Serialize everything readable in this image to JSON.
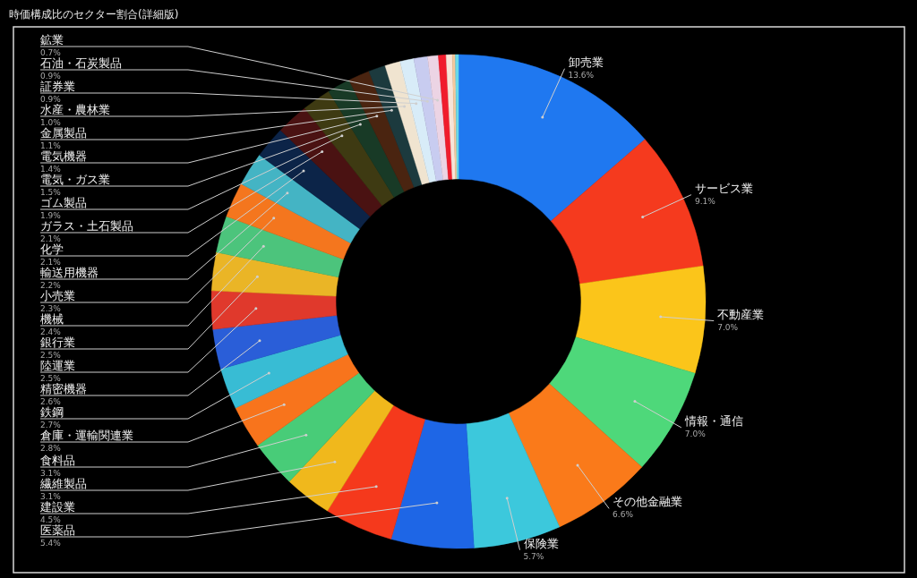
{
  "chart_data": {
    "type": "donut",
    "title": "時価構成比のセクター割合(詳細版)",
    "categories": [
      "卸売業",
      "サービス業",
      "不動産業",
      "情報・通信",
      "その他金融業",
      "保険業",
      "医薬品",
      "建設業",
      "繊維製品",
      "食料品",
      "倉庫・運輸関連業",
      "鉄鋼",
      "精密機器",
      "陸運業",
      "銀行業",
      "機械",
      "小売業",
      "輸送用機器",
      "化学",
      "ガラス・土石製品",
      "ゴム製品",
      "電気・ガス業",
      "電気機器",
      "金属製品",
      "水産・農林業",
      "証券業",
      "石油・石炭製品",
      "鉱業",
      null,
      null,
      null,
      null
    ],
    "values": [
      13.6,
      9.1,
      7.0,
      7.0,
      6.6,
      5.7,
      5.4,
      4.5,
      3.1,
      3.1,
      2.8,
      2.7,
      2.6,
      2.5,
      2.5,
      2.4,
      2.3,
      2.2,
      2.1,
      2.1,
      1.9,
      1.5,
      1.4,
      1.1,
      1.0,
      0.9,
      0.9,
      0.7,
      0.5,
      0.4,
      0.2,
      0.2
    ],
    "value_labels": [
      "13.6%",
      "9.1%",
      "7.0%",
      "7.0%",
      "6.6%",
      "5.7%",
      "5.4%",
      "4.5%",
      "3.1%",
      "3.1%",
      "2.8%",
      "2.7%",
      "2.6%",
      "2.5%",
      "2.5%",
      "2.4%",
      "2.3%",
      "2.2%",
      "2.1%",
      "2.1%",
      "1.9%",
      "1.5%",
      "1.4%",
      "1.1%",
      "1.0%",
      "0.9%",
      "0.9%",
      "0.7%",
      null,
      null,
      null,
      null
    ],
    "colors": [
      "#1f78f0",
      "#f53a1e",
      "#fbc51a",
      "#4ed87a",
      "#fa7a1a",
      "#3cc8dc",
      "#1e66e6",
      "#f5391c",
      "#f0b81c",
      "#48cc78",
      "#f8741c",
      "#38bcd4",
      "#2a5ed8",
      "#e0392c",
      "#eab526",
      "#4cc47c",
      "#f4761e",
      "#44b4c4",
      "#0c2448",
      "#4a1212",
      "#3e3a12",
      "#183a26",
      "#4a2410",
      "#1c3a3e",
      "#f0e4d0",
      "#d8ecf8",
      "#c8ccf0",
      "#ecd4e4",
      "#f01c2c",
      "#f8e4d8",
      "#f4c89c",
      "#68d8e8"
    ],
    "legend": false
  }
}
